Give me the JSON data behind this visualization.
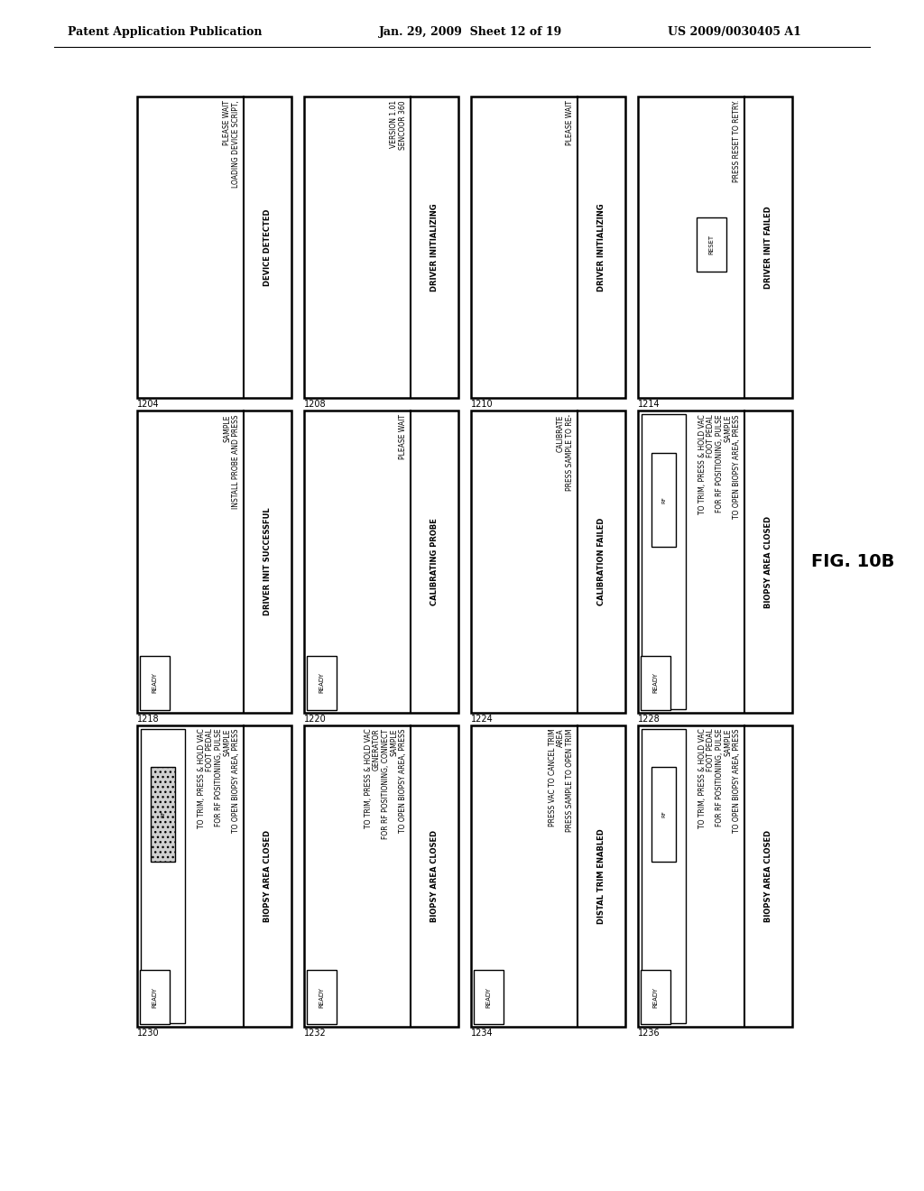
{
  "header_left": "Patent Application Publication",
  "header_center": "Jan. 29, 2009  Sheet 12 of 19",
  "header_right": "US 2009/0030405 A1",
  "figure_label": "FIG. 10B",
  "background": "#ffffff",
  "boxes": [
    {
      "id": "1204",
      "label": "1204",
      "title": "DEVICE DETECTED",
      "lines": [
        "LOADING DEVICE SCRIPT,",
        "PLEASE WAIT"
      ],
      "has_ready": false,
      "has_reset": false,
      "has_rf": false,
      "rf_hatched": false,
      "has_inner_panel": false,
      "grid_col": 0,
      "grid_row": 0
    },
    {
      "id": "1208",
      "label": "1208",
      "title": "DRIVER INITIALIZING",
      "lines": [
        "SENCOOR 360",
        "VERSION 1.01"
      ],
      "has_ready": false,
      "has_reset": false,
      "has_rf": false,
      "rf_hatched": false,
      "has_inner_panel": false,
      "grid_col": 1,
      "grid_row": 0
    },
    {
      "id": "1210",
      "label": "1210",
      "title": "DRIVER INITIALIZING",
      "lines": [
        "PLEASE WAIT"
      ],
      "has_ready": false,
      "has_reset": false,
      "has_rf": false,
      "rf_hatched": false,
      "has_inner_panel": false,
      "grid_col": 2,
      "grid_row": 0
    },
    {
      "id": "1214",
      "label": "1214",
      "title": "DRIVER INIT FAILED",
      "lines": [
        "PRESS RESET TO RETRY."
      ],
      "has_ready": false,
      "has_reset": true,
      "has_rf": false,
      "rf_hatched": false,
      "has_inner_panel": false,
      "grid_col": 3,
      "grid_row": 0
    },
    {
      "id": "1218",
      "label": "1218",
      "title": "DRIVER INIT SUCCESSFUL",
      "lines": [
        "INSTALL PROBE AND PRESS",
        "SAMPLE"
      ],
      "has_ready": true,
      "has_reset": false,
      "has_rf": false,
      "rf_hatched": false,
      "has_inner_panel": false,
      "grid_col": 0,
      "grid_row": 1
    },
    {
      "id": "1220",
      "label": "1220",
      "title": "CALIBRATING PROBE",
      "lines": [
        "PLEASE WAIT"
      ],
      "has_ready": true,
      "has_reset": false,
      "has_rf": false,
      "rf_hatched": false,
      "has_inner_panel": false,
      "grid_col": 1,
      "grid_row": 1
    },
    {
      "id": "1224",
      "label": "1224",
      "title": "CALIBRATION FAILED",
      "lines": [
        "PRESS SAMPLE TO RE-",
        "CALIBRATE"
      ],
      "has_ready": false,
      "has_reset": false,
      "has_rf": false,
      "rf_hatched": false,
      "has_inner_panel": false,
      "grid_col": 2,
      "grid_row": 1
    },
    {
      "id": "1228",
      "label": "1228",
      "title": "BIOPSY AREA CLOSED",
      "lines": [
        "TO OPEN BIOPSY AREA, PRESS",
        "SAMPLE",
        "FOR RF POSITIONING, PULSE",
        "FOOT PEDAL",
        "TO TRIM, PRESS & HOLD VAC"
      ],
      "has_ready": true,
      "has_reset": false,
      "has_rf": true,
      "rf_hatched": false,
      "has_inner_panel": true,
      "grid_col": 3,
      "grid_row": 1
    },
    {
      "id": "1230",
      "label": "1230",
      "title": "BIOPSY AREA CLOSED",
      "lines": [
        "TO OPEN BIOPSY AREA, PRESS",
        "SAMPLE",
        "FOR RF POSITIONING, PULSE",
        "FOOT PEDAL",
        "TO TRIM, PRESS & HOLD VAC"
      ],
      "has_ready": true,
      "has_reset": false,
      "has_rf": true,
      "rf_hatched": true,
      "has_inner_panel": true,
      "grid_col": 0,
      "grid_row": 2
    },
    {
      "id": "1232",
      "label": "1232",
      "title": "BIOPSY AREA CLOSED",
      "lines": [
        "TO OPEN BIOPSY AREA, PRESS",
        "SAMPLE",
        "FOR RF POSITIONING, CONNECT",
        "GENERATOR",
        "TO TRIM, PRESS & HOLD VAC"
      ],
      "has_ready": true,
      "has_reset": false,
      "has_rf": false,
      "rf_hatched": false,
      "has_inner_panel": false,
      "grid_col": 1,
      "grid_row": 2
    },
    {
      "id": "1234",
      "label": "1234",
      "title": "DISTAL TRIM ENABLED",
      "lines": [
        "PRESS SAMPLE TO OPEN TRIM",
        "AREA",
        "PRESS VAC TO CANCEL TRIM"
      ],
      "has_ready": true,
      "has_reset": false,
      "has_rf": false,
      "rf_hatched": false,
      "has_inner_panel": false,
      "grid_col": 2,
      "grid_row": 2
    },
    {
      "id": "1236",
      "label": "1236",
      "title": "BIOPSY AREA CLOSED",
      "lines": [
        "TO OPEN BIOPSY AREA, PRESS",
        "SAMPLE",
        "FOR RF POSITIONING, PULSE",
        "FOOT PEDAL",
        "TO TRIM, PRESS & HOLD VAC"
      ],
      "has_ready": true,
      "has_reset": false,
      "has_rf": true,
      "rf_hatched": false,
      "has_inner_panel": true,
      "grid_col": 3,
      "grid_row": 2
    }
  ]
}
